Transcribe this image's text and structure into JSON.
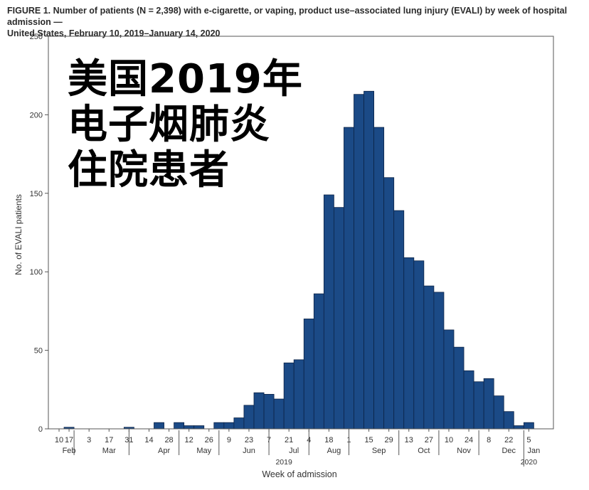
{
  "caption": {
    "line1": "FIGURE 1. Number of patients (N = 2,398) with e-cigarette, or vaping, product use–associated lung injury (EVALI) by week of hospital admission —",
    "line2": "United States, February 10, 2019–January 14, 2020"
  },
  "overlay": {
    "line1": "美国2019年",
    "line2": "电子烟肺炎",
    "line3": "住院患者"
  },
  "colors": {
    "bar": "#1b4a86",
    "bar_edge": "#0c2346",
    "axis": "#555555"
  },
  "chart_data": {
    "type": "bar",
    "title": "FIGURE 1. Number of patients (N = 2,398) with e-cigarette, or vaping, product use–associated lung injury (EVALI) by week of hospital admission — United States, February 10, 2019–January 14, 2020",
    "xlabel": "Week of admission",
    "ylabel": "No. of EVALI  patients",
    "ylim": [
      0,
      250
    ],
    "yticks": [
      0,
      50,
      100,
      150,
      200,
      250
    ],
    "grid": false,
    "categories": [
      "Feb 10",
      "Feb 17",
      "Feb 24",
      "Mar 3",
      "Mar 10",
      "Mar 17",
      "Mar 24",
      "Mar 31",
      "Apr 7",
      "Apr 14",
      "Apr 21",
      "Apr 28",
      "May 5",
      "May 12",
      "May 19",
      "May 26",
      "Jun 2",
      "Jun 9",
      "Jun 16",
      "Jun 23",
      "Jun 30",
      "Jul 7",
      "Jul 14",
      "Jul 21",
      "Jul 28",
      "Aug 4",
      "Aug 11",
      "Aug 18",
      "Aug 25",
      "Sep 1",
      "Sep 8",
      "Sep 15",
      "Sep 22",
      "Sep 29",
      "Oct 6",
      "Oct 13",
      "Oct 20",
      "Oct 27",
      "Nov 3",
      "Nov 10",
      "Nov 17",
      "Nov 24",
      "Dec 1",
      "Dec 8",
      "Dec 15",
      "Dec 22",
      "Dec 29",
      "Jan 5"
    ],
    "values": [
      0,
      1,
      0,
      0,
      0,
      0,
      0,
      1,
      0,
      0,
      4,
      0,
      4,
      2,
      2,
      0,
      4,
      4,
      7,
      15,
      23,
      22,
      19,
      42,
      44,
      70,
      86,
      149,
      141,
      192,
      213,
      215,
      192,
      160,
      139,
      109,
      107,
      91,
      87,
      63,
      52,
      37,
      30,
      32,
      21,
      11,
      2,
      4
    ],
    "tick_labels": [
      "10",
      "17",
      "3",
      "17",
      "31",
      "14",
      "28",
      "12",
      "26",
      "9",
      "23",
      "7",
      "21",
      "4",
      "18",
      "1",
      "15",
      "29",
      "13",
      "27",
      "10",
      "24",
      "8",
      "22",
      "5"
    ],
    "tick_weeks": [
      0,
      1,
      3,
      5,
      7,
      9,
      11,
      13,
      15,
      17,
      19,
      21,
      23,
      25,
      27,
      29,
      31,
      33,
      35,
      37,
      39,
      41,
      43,
      45,
      47
    ],
    "months": [
      {
        "label": "Feb",
        "center": 1.0
      },
      {
        "label": "Mar",
        "center": 5.0
      },
      {
        "label": "Apr",
        "center": 10.5
      },
      {
        "label": "May",
        "center": 14.5
      },
      {
        "label": "Jun",
        "center": 19.0
      },
      {
        "label": "Jul",
        "center": 23.5
      },
      {
        "label": "Aug",
        "center": 27.5
      },
      {
        "label": "Sep",
        "center": 32.0
      },
      {
        "label": "Oct",
        "center": 36.5
      },
      {
        "label": "Nov",
        "center": 40.5
      },
      {
        "label": "Dec",
        "center": 45.0
      },
      {
        "label": "Jan",
        "center": 47.5
      }
    ],
    "month_separators": [
      2,
      7.5,
      12.5,
      16.5,
      21.5,
      25.5,
      29.5,
      34.5,
      38.5,
      42.5,
      47
    ],
    "year_labels": [
      {
        "label": "2019",
        "center": 23.0
      },
      {
        "label": "2020",
        "center": 47.5
      }
    ],
    "year_separator": 47
  }
}
